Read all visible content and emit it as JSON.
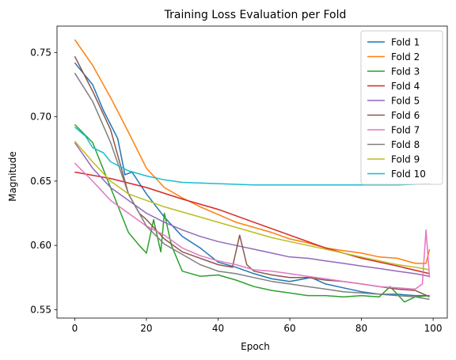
{
  "chart_data": {
    "type": "line",
    "title": "Training Loss Evaluation per Fold",
    "xlabel": "Epoch",
    "ylabel": "Magnitude",
    "xlim": [
      -4.95,
      103.95
    ],
    "ylim": [
      0.5435,
      0.7705
    ],
    "xticks": [
      0,
      20,
      40,
      60,
      80,
      100
    ],
    "yticks": [
      0.55,
      0.6,
      0.65,
      0.7,
      0.75
    ],
    "ytick_labels": [
      "0.55",
      "0.60",
      "0.65",
      "0.70",
      "0.75"
    ],
    "grid": false,
    "legend_position": "top-right",
    "series": [
      {
        "name": "Fold 1",
        "color": "#1f77b4",
        "points": [
          [
            0,
            0.742
          ],
          [
            5,
            0.725
          ],
          [
            8,
            0.705
          ],
          [
            12,
            0.683
          ],
          [
            14,
            0.655
          ],
          [
            16,
            0.657
          ],
          [
            20,
            0.64
          ],
          [
            25,
            0.622
          ],
          [
            30,
            0.607
          ],
          [
            35,
            0.598
          ],
          [
            40,
            0.587
          ],
          [
            45,
            0.583
          ],
          [
            50,
            0.578
          ],
          [
            55,
            0.574
          ],
          [
            60,
            0.572
          ],
          [
            66,
            0.575
          ],
          [
            70,
            0.57
          ],
          [
            75,
            0.567
          ],
          [
            80,
            0.564
          ],
          [
            85,
            0.562
          ],
          [
            90,
            0.562
          ],
          [
            95,
            0.561
          ],
          [
            99,
            0.561
          ]
        ]
      },
      {
        "name": "Fold 2",
        "color": "#ff7f0e",
        "points": [
          [
            0,
            0.76
          ],
          [
            5,
            0.74
          ],
          [
            10,
            0.715
          ],
          [
            15,
            0.688
          ],
          [
            20,
            0.66
          ],
          [
            25,
            0.645
          ],
          [
            30,
            0.637
          ],
          [
            35,
            0.63
          ],
          [
            40,
            0.624
          ],
          [
            45,
            0.618
          ],
          [
            50,
            0.614
          ],
          [
            55,
            0.61
          ],
          [
            60,
            0.605
          ],
          [
            65,
            0.602
          ],
          [
            70,
            0.598
          ],
          [
            75,
            0.596
          ],
          [
            80,
            0.594
          ],
          [
            85,
            0.591
          ],
          [
            90,
            0.59
          ],
          [
            95,
            0.586
          ],
          [
            98,
            0.586
          ],
          [
            99,
            0.597
          ]
        ]
      },
      {
        "name": "Fold 3",
        "color": "#2ca02c",
        "points": [
          [
            0,
            0.694
          ],
          [
            5,
            0.68
          ],
          [
            10,
            0.645
          ],
          [
            15,
            0.61
          ],
          [
            18,
            0.6
          ],
          [
            20,
            0.594
          ],
          [
            22,
            0.62
          ],
          [
            24,
            0.595
          ],
          [
            25,
            0.625
          ],
          [
            27,
            0.6
          ],
          [
            30,
            0.58
          ],
          [
            35,
            0.576
          ],
          [
            40,
            0.577
          ],
          [
            45,
            0.573
          ],
          [
            50,
            0.568
          ],
          [
            55,
            0.565
          ],
          [
            60,
            0.563
          ],
          [
            65,
            0.561
          ],
          [
            70,
            0.561
          ],
          [
            75,
            0.56
          ],
          [
            80,
            0.561
          ],
          [
            85,
            0.56
          ],
          [
            88,
            0.568
          ],
          [
            92,
            0.556
          ],
          [
            95,
            0.56
          ],
          [
            99,
            0.561
          ]
        ]
      },
      {
        "name": "Fold 4",
        "color": "#d62728",
        "points": [
          [
            0,
            0.657
          ],
          [
            10,
            0.652
          ],
          [
            20,
            0.645
          ],
          [
            30,
            0.636
          ],
          [
            40,
            0.628
          ],
          [
            50,
            0.618
          ],
          [
            60,
            0.608
          ],
          [
            70,
            0.598
          ],
          [
            80,
            0.59
          ],
          [
            90,
            0.584
          ],
          [
            99,
            0.578
          ]
        ]
      },
      {
        "name": "Fold 5",
        "color": "#9467bd",
        "points": [
          [
            0,
            0.68
          ],
          [
            5,
            0.66
          ],
          [
            10,
            0.645
          ],
          [
            15,
            0.635
          ],
          [
            20,
            0.625
          ],
          [
            25,
            0.618
          ],
          [
            30,
            0.612
          ],
          [
            35,
            0.607
          ],
          [
            40,
            0.603
          ],
          [
            45,
            0.6
          ],
          [
            50,
            0.597
          ],
          [
            55,
            0.594
          ],
          [
            60,
            0.591
          ],
          [
            65,
            0.59
          ],
          [
            70,
            0.588
          ],
          [
            75,
            0.586
          ],
          [
            80,
            0.584
          ],
          [
            85,
            0.582
          ],
          [
            90,
            0.58
          ],
          [
            95,
            0.578
          ],
          [
            99,
            0.576
          ]
        ]
      },
      {
        "name": "Fold 6",
        "color": "#8c564b",
        "points": [
          [
            0,
            0.747
          ],
          [
            5,
            0.72
          ],
          [
            10,
            0.69
          ],
          [
            15,
            0.64
          ],
          [
            18,
            0.625
          ],
          [
            20,
            0.62
          ],
          [
            25,
            0.605
          ],
          [
            30,
            0.595
          ],
          [
            35,
            0.59
          ],
          [
            40,
            0.585
          ],
          [
            44,
            0.583
          ],
          [
            46,
            0.608
          ],
          [
            48,
            0.585
          ],
          [
            50,
            0.58
          ],
          [
            55,
            0.577
          ],
          [
            60,
            0.575
          ],
          [
            65,
            0.575
          ],
          [
            70,
            0.573
          ],
          [
            75,
            0.572
          ],
          [
            80,
            0.57
          ],
          [
            85,
            0.568
          ],
          [
            90,
            0.566
          ],
          [
            95,
            0.565
          ],
          [
            99,
            0.56
          ]
        ]
      },
      {
        "name": "Fold 7",
        "color": "#e377c2",
        "points": [
          [
            0,
            0.664
          ],
          [
            5,
            0.65
          ],
          [
            10,
            0.635
          ],
          [
            15,
            0.625
          ],
          [
            20,
            0.615
          ],
          [
            25,
            0.608
          ],
          [
            30,
            0.598
          ],
          [
            35,
            0.592
          ],
          [
            40,
            0.588
          ],
          [
            45,
            0.585
          ],
          [
            50,
            0.581
          ],
          [
            55,
            0.58
          ],
          [
            60,
            0.578
          ],
          [
            65,
            0.576
          ],
          [
            70,
            0.574
          ],
          [
            75,
            0.572
          ],
          [
            80,
            0.57
          ],
          [
            85,
            0.568
          ],
          [
            90,
            0.567
          ],
          [
            95,
            0.566
          ],
          [
            97,
            0.57
          ],
          [
            98,
            0.612
          ],
          [
            99,
            0.575
          ]
        ]
      },
      {
        "name": "Fold 8",
        "color": "#7f7f7f",
        "points": [
          [
            0,
            0.734
          ],
          [
            5,
            0.712
          ],
          [
            10,
            0.68
          ],
          [
            15,
            0.64
          ],
          [
            20,
            0.615
          ],
          [
            25,
            0.601
          ],
          [
            30,
            0.593
          ],
          [
            35,
            0.585
          ],
          [
            40,
            0.58
          ],
          [
            45,
            0.578
          ],
          [
            50,
            0.575
          ],
          [
            55,
            0.572
          ],
          [
            60,
            0.57
          ],
          [
            65,
            0.568
          ],
          [
            70,
            0.566
          ],
          [
            75,
            0.564
          ],
          [
            80,
            0.563
          ],
          [
            85,
            0.562
          ],
          [
            90,
            0.561
          ],
          [
            95,
            0.56
          ],
          [
            99,
            0.558
          ]
        ]
      },
      {
        "name": "Fold 9",
        "color": "#bcbd22",
        "points": [
          [
            0,
            0.681
          ],
          [
            5,
            0.665
          ],
          [
            10,
            0.65
          ],
          [
            15,
            0.64
          ],
          [
            20,
            0.635
          ],
          [
            25,
            0.63
          ],
          [
            30,
            0.626
          ],
          [
            35,
            0.622
          ],
          [
            40,
            0.618
          ],
          [
            45,
            0.614
          ],
          [
            50,
            0.61
          ],
          [
            55,
            0.606
          ],
          [
            60,
            0.603
          ],
          [
            65,
            0.6
          ],
          [
            70,
            0.597
          ],
          [
            75,
            0.594
          ],
          [
            80,
            0.591
          ],
          [
            85,
            0.588
          ],
          [
            90,
            0.585
          ],
          [
            95,
            0.583
          ],
          [
            99,
            0.581
          ]
        ]
      },
      {
        "name": "Fold 10",
        "color": "#17becf",
        "points": [
          [
            0,
            0.692
          ],
          [
            3,
            0.685
          ],
          [
            5,
            0.676
          ],
          [
            8,
            0.672
          ],
          [
            10,
            0.665
          ],
          [
            15,
            0.658
          ],
          [
            20,
            0.654
          ],
          [
            25,
            0.651
          ],
          [
            30,
            0.649
          ],
          [
            40,
            0.648
          ],
          [
            50,
            0.647
          ],
          [
            60,
            0.647
          ],
          [
            70,
            0.647
          ],
          [
            80,
            0.647
          ],
          [
            90,
            0.647
          ],
          [
            99,
            0.648
          ]
        ]
      }
    ]
  }
}
